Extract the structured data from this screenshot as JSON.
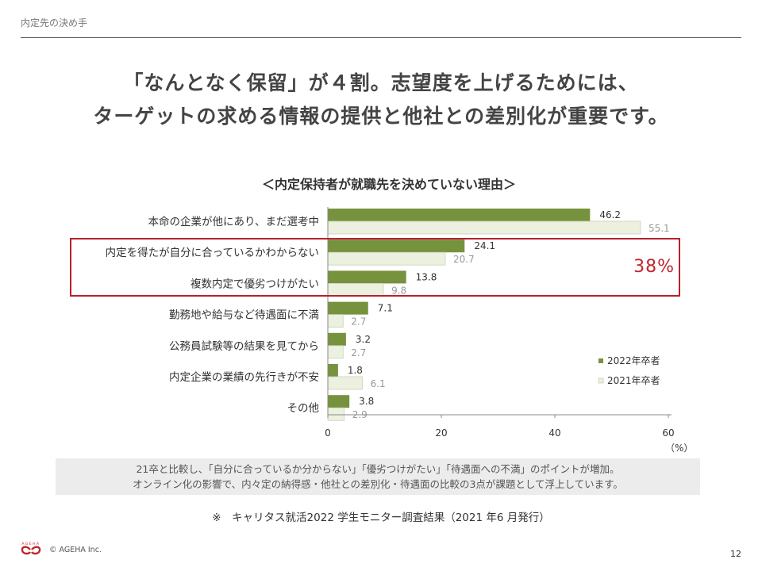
{
  "header": {
    "section": "内定先の決め手"
  },
  "headline": {
    "line1": "「なんとなく保留」が４割。志望度を上げるためには、",
    "line2": "ターゲットの求める情報の提供と他社との差別化が重要です。"
  },
  "chart_data": {
    "type": "bar",
    "orientation": "horizontal",
    "title": "＜内定保持者が就職先を決めていない理由＞",
    "categories": [
      "本命の企業が他にあり、まだ選考中",
      "内定を得たが自分に合っているかわからない",
      "複数内定で優劣つけがたい",
      "勤務地や給与など待遇面に不満",
      "公務員試験等の結果を見てから",
      "内定企業の業績の先行きが不安",
      "その他"
    ],
    "series": [
      {
        "name": "2022年卒者",
        "values": [
          46.2,
          24.1,
          13.8,
          7.1,
          3.2,
          1.8,
          3.8
        ],
        "color": "#76923c"
      },
      {
        "name": "2021年卒者",
        "values": [
          55.1,
          20.7,
          9.8,
          2.7,
          2.7,
          6.1,
          2.9
        ],
        "color": "#ebf1de"
      }
    ],
    "xlim": [
      0,
      60
    ],
    "xticks": [
      "0",
      "20",
      "40",
      "60"
    ],
    "xunit": "（%）",
    "legend_position": "lower-right",
    "grid": false,
    "highlight": {
      "categories": [
        "内定を得たが自分に合っているかわからない",
        "複数内定で優劣つけがたい"
      ],
      "value_label": "38%",
      "color": "#b8202e"
    }
  },
  "summary": {
    "line1": "21卒と比較し、「自分に合っているか分からない」「優劣つけがたい」「待遇面への不満」のポイントが増加。",
    "line2": "オンライン化の影響で、内々定の納得感・他社との差別化・待遇面の比較の3点が課題として浮上しています。"
  },
  "source": "※　キャリタス就活2022 学生モニター調査結果（2021 年6 月発行）",
  "footer": {
    "logo_text": "AGEHA",
    "copyright": "© AGEHA Inc.",
    "page_number": "12"
  }
}
